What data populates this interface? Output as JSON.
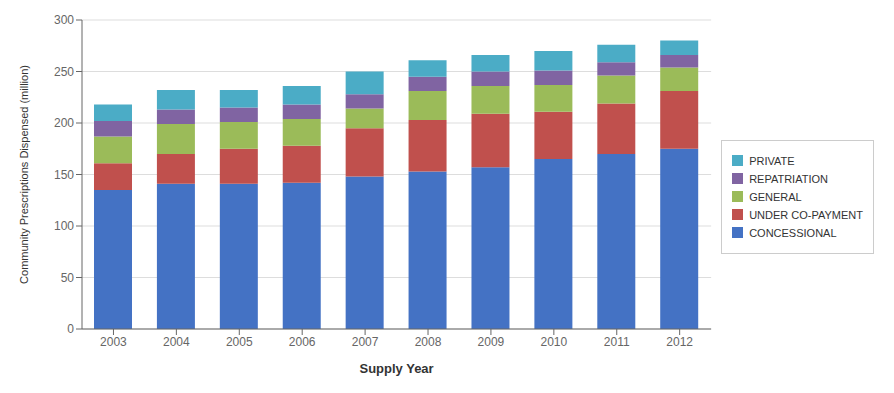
{
  "chart_data": {
    "type": "bar",
    "stacked": true,
    "xlabel": "Supply Year",
    "ylabel": "Community Prescriptions Dispensed (million)",
    "categories": [
      "2003",
      "2004",
      "2005",
      "2006",
      "2007",
      "2008",
      "2009",
      "2010",
      "2011",
      "2012"
    ],
    "series": [
      {
        "name": "CONCESSIONAL",
        "color": "#4472C4",
        "values": [
          135,
          141,
          141,
          142,
          148,
          153,
          157,
          165,
          170,
          175
        ]
      },
      {
        "name": "UNDER CO-PAYMENT",
        "color": "#C0504D",
        "values": [
          26,
          29,
          34,
          36,
          47,
          50,
          52,
          46,
          49,
          56
        ]
      },
      {
        "name": "GENERAL",
        "color": "#9BBB59",
        "values": [
          26,
          29,
          26,
          26,
          19,
          28,
          27,
          26,
          27,
          23
        ]
      },
      {
        "name": "REPATRIATION",
        "color": "#8064A2",
        "values": [
          15,
          14,
          14,
          14,
          14,
          14,
          14,
          14,
          13,
          12
        ]
      },
      {
        "name": "PRIVATE",
        "color": "#4BACC6",
        "values": [
          16,
          19,
          17,
          18,
          22,
          16,
          16,
          19,
          17,
          14
        ]
      }
    ],
    "ylim": [
      0,
      300
    ],
    "yticks": [
      0,
      50,
      100,
      150,
      200,
      250,
      300
    ],
    "grid": true,
    "legend": "right"
  }
}
